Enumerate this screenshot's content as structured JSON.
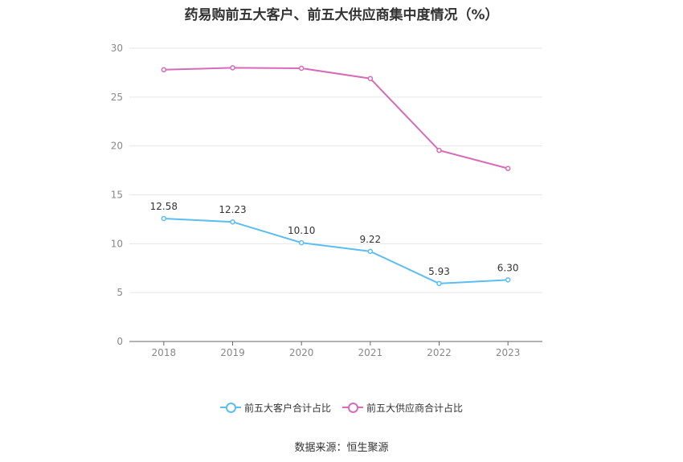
{
  "chart_data": {
    "type": "line",
    "title": "药易购前五大客户、前五大供应商集中度情况（%）",
    "categories": [
      "2018",
      "2019",
      "2020",
      "2021",
      "2022",
      "2023"
    ],
    "ylim": [
      0,
      30
    ],
    "yticks": [
      0,
      5,
      10,
      15,
      20,
      25,
      30
    ],
    "grid": true,
    "legend_position": "bottom",
    "series": [
      {
        "name": "前五大客户合计占比",
        "color": "#5bbdf0",
        "values": [
          12.58,
          12.23,
          10.1,
          9.22,
          5.93,
          6.3
        ],
        "labels": [
          "12.58",
          "12.23",
          "10.10",
          "9.22",
          "5.93",
          "6.30"
        ]
      },
      {
        "name": "前五大供应商合计占比",
        "color": "#d66bb8",
        "values": [
          27.8,
          28.0,
          27.95,
          26.9,
          19.55,
          17.7
        ]
      }
    ]
  },
  "source": "数据来源：恒生聚源"
}
